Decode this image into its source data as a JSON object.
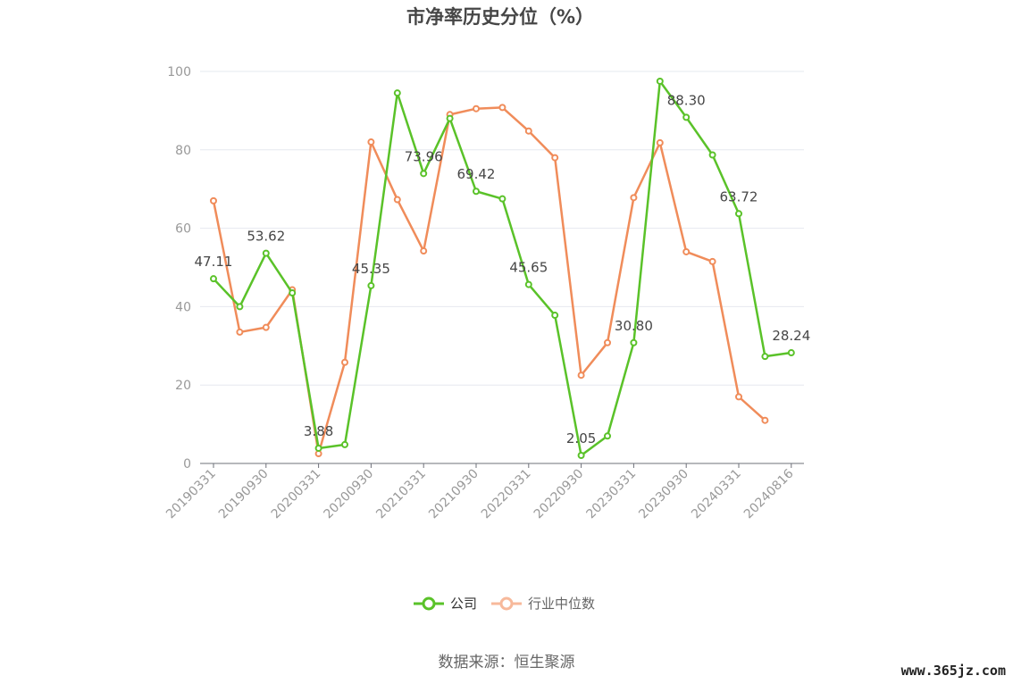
{
  "chart_data": {
    "type": "line",
    "title": "市净率历史分位（%）",
    "ylim": [
      0,
      100
    ],
    "yticks": [
      0,
      20,
      40,
      60,
      80,
      100
    ],
    "x": [
      "20190331",
      "20190630",
      "20190930",
      "20191231",
      "20200331",
      "20200630",
      "20200930",
      "20201231",
      "20210331",
      "20210630",
      "20210930",
      "20211231",
      "20220331",
      "20220630",
      "20220930",
      "20221231",
      "20230331",
      "20230630",
      "20230930",
      "20231231",
      "20240331",
      "20240630",
      "20240816"
    ],
    "xtick_labels": [
      "20190331",
      "20190930",
      "20200331",
      "20200930",
      "20210331",
      "20210930",
      "20220331",
      "20220930",
      "20230331",
      "20230930",
      "20240331",
      "20240816"
    ],
    "grid": true,
    "legend_position": "bottom",
    "series": [
      {
        "name": "公司",
        "color": "#5ac229",
        "values": [
          47.11,
          40.0,
          53.62,
          43.5,
          3.88,
          4.8,
          45.35,
          94.5,
          73.96,
          88.0,
          69.42,
          67.5,
          45.65,
          37.8,
          2.05,
          7.0,
          30.8,
          97.5,
          88.3,
          78.7,
          63.72,
          27.3,
          28.24
        ],
        "labels": {
          "0": "47.11",
          "2": "53.62",
          "4": "3.88",
          "6": "45.35",
          "8": "73.96",
          "10": "69.42",
          "12": "45.65",
          "14": "2.05",
          "16": "30.80",
          "18": "88.30",
          "20": "63.72",
          "22": "28.24"
        }
      },
      {
        "name": "行业中位数",
        "color": "#f08c5a",
        "values": [
          67.0,
          33.5,
          34.7,
          44.3,
          2.5,
          25.8,
          82.0,
          67.3,
          54.2,
          89.0,
          90.5,
          90.8,
          84.8,
          78.0,
          22.5,
          30.8,
          67.8,
          81.8,
          54.0,
          51.5,
          17.0,
          11.0,
          null
        ]
      }
    ]
  },
  "source_text": "数据来源：恒生聚源",
  "watermark": "www.365jz.com"
}
